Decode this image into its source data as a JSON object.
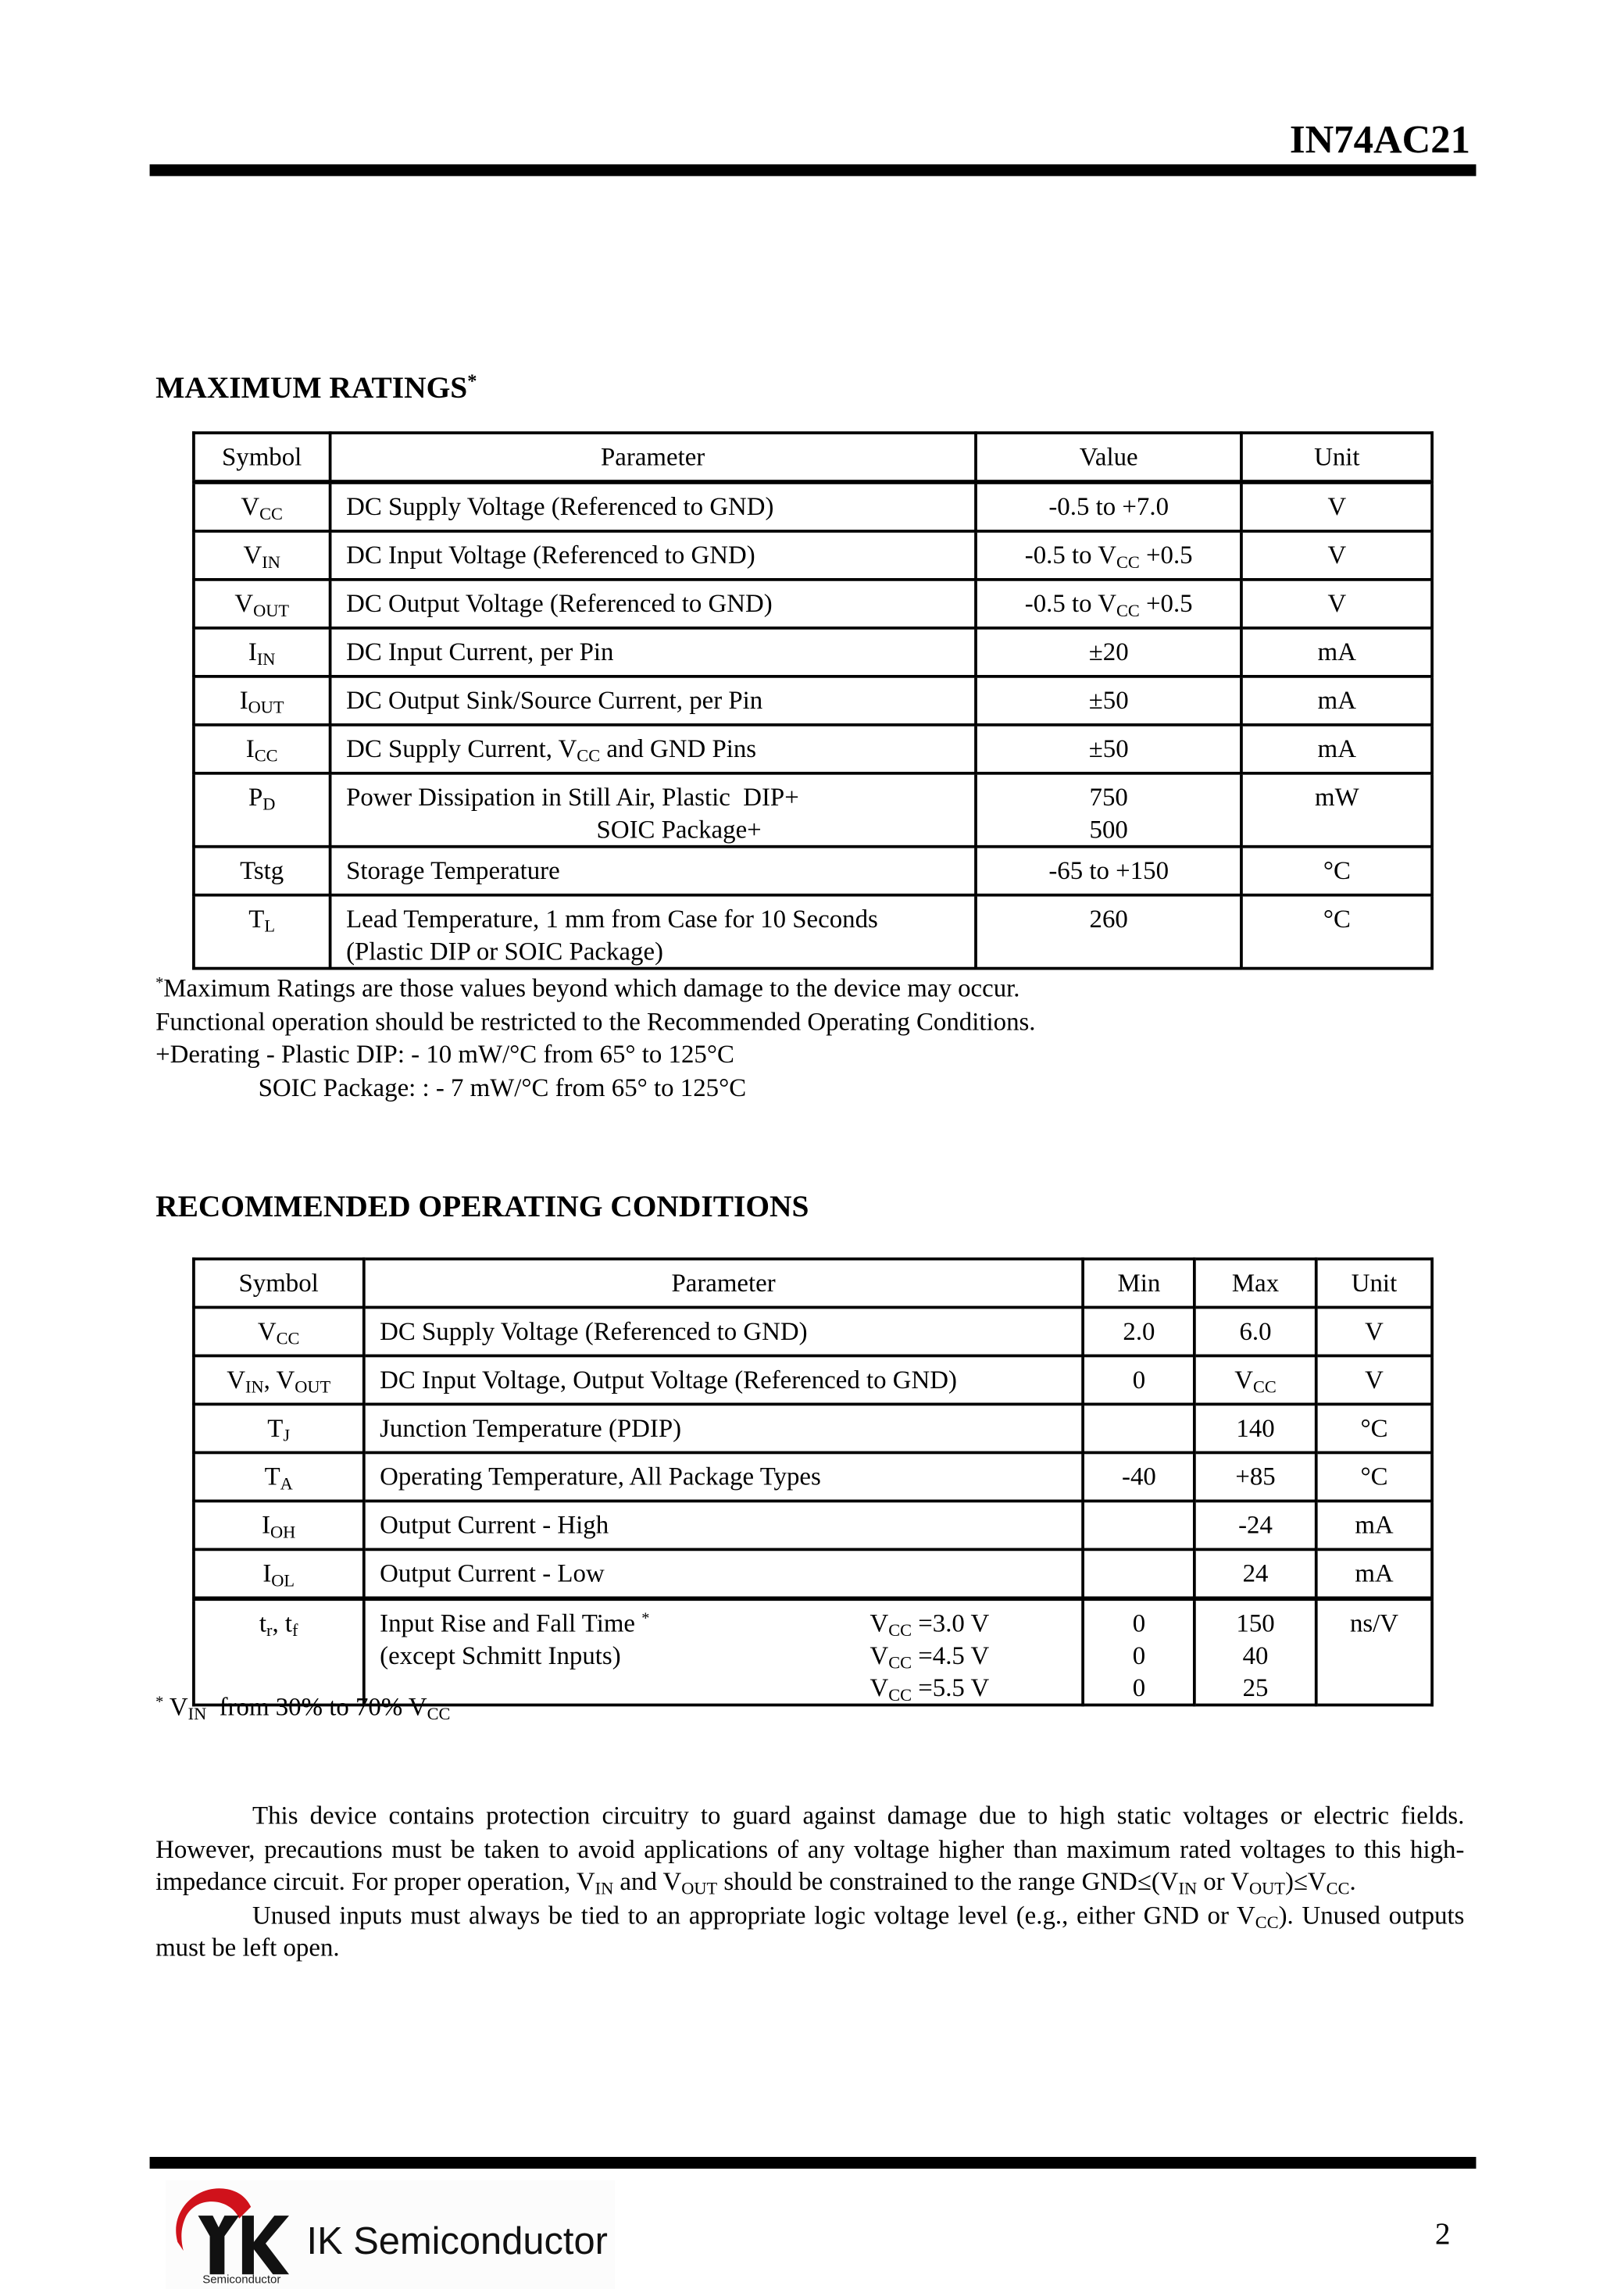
{
  "header": {
    "part_number": "IN74AC21"
  },
  "max_ratings": {
    "title": "MAXIMUM RATINGS^{*}",
    "columns": [
      "Symbol",
      "Parameter",
      "Value",
      "Unit"
    ],
    "rows": [
      [
        "V_{CC}",
        "DC Supply Voltage (Referenced to GND)",
        "-0.5 to +7.0",
        "V"
      ],
      [
        "V_{IN}",
        "DC Input Voltage (Referenced to GND)",
        "-0.5 to V_{CC} +0.5",
        "V"
      ],
      [
        "V_{OUT}",
        "DC Output Voltage (Referenced to GND)",
        "-0.5 to V_{CC} +0.5",
        "V"
      ],
      [
        "I_{IN}",
        "DC Input Current, per Pin",
        "±20",
        "mA"
      ],
      [
        "I_{OUT}",
        "DC Output Sink/Source Current, per Pin",
        "±50",
        "mA"
      ],
      [
        "I_{CC}",
        "DC Supply Current, V_{CC} and GND Pins",
        "±50",
        "mA"
      ],
      [
        "P_{D}",
        "Power Dissipation in Still Air, Plastic  DIP+\n                                       SOIC Package+",
        "750\n500",
        "mW"
      ],
      [
        "Tstg",
        "Storage Temperature",
        "-65 to +150",
        "°C"
      ],
      [
        "T_{L}",
        "Lead Temperature, 1 mm from Case for 10 Seconds\n(Plastic DIP or SOIC Package)",
        "260",
        "°C"
      ]
    ],
    "notes": [
      "^{*}Maximum Ratings are those values beyond which damage to the device may occur.",
      "Functional operation should be restricted to the Recommended Operating Conditions.",
      "+Derating - Plastic DIP: - 10 mW/°C from 65° to 125°C",
      "                SOIC Package: : - 7 mW/°C from 65° to 125°C"
    ]
  },
  "rec_conditions": {
    "title": "RECOMMENDED OPERATING CONDITIONS",
    "columns": [
      "Symbol",
      "Parameter",
      "Min",
      "Max",
      "Unit"
    ],
    "rows": [
      [
        "V_{CC}",
        "DC Supply Voltage (Referenced to GND)",
        "2.0",
        "6.0",
        "V"
      ],
      [
        "V_{IN}, V_{OUT}",
        "DC Input Voltage, Output Voltage (Referenced to GND)",
        "0",
        "V_{CC}",
        "V"
      ],
      [
        "T_{J}",
        "Junction Temperature (PDIP)",
        "",
        "140",
        "°C"
      ],
      [
        "T_{A}",
        "Operating Temperature, All Package Types",
        "-40",
        "+85",
        "°C"
      ],
      [
        "I_{OH}",
        "Output Current - High",
        "",
        "-24",
        "mA"
      ],
      [
        "I_{OL}",
        "Output Current - Low",
        "",
        "24",
        "mA"
      ]
    ],
    "rise_fall": {
      "symbol": "t_{r}, t_{f}",
      "parameter": "Input Rise and Fall Time ^{*}\n(except Schmitt Inputs)",
      "conditions": [
        "V_{CC} =3.0 V",
        "V_{CC} =4.5 V",
        "V_{CC} =5.5 V"
      ],
      "min": [
        "0",
        "0",
        "0"
      ],
      "max": [
        "150",
        "40",
        "25"
      ],
      "unit": "ns/V"
    },
    "footnote": "^{*} V_{IN}  from 30% to 70% V_{CC}"
  },
  "body": {
    "paragraphs": [
      "This device contains protection circuitry to guard against damage due to high static voltages or electric fields. However, precautions must be taken to avoid applications of any voltage higher than maximum rated voltages to this high-impedance circuit. For proper operation, V_{IN} and V_{OUT} should be constrained to the range GND≤(V_{IN} or V_{OUT})≤V_{CC}.",
      "Unused inputs must always be tied to an appropriate logic voltage level (e.g., either GND or V_{CC}). Unused outputs must be left open."
    ]
  },
  "footer": {
    "logo_text": "IK Semiconductor",
    "logo_subtext": "Semiconductor",
    "page_number": "2",
    "logo_red": "#d0121b"
  }
}
